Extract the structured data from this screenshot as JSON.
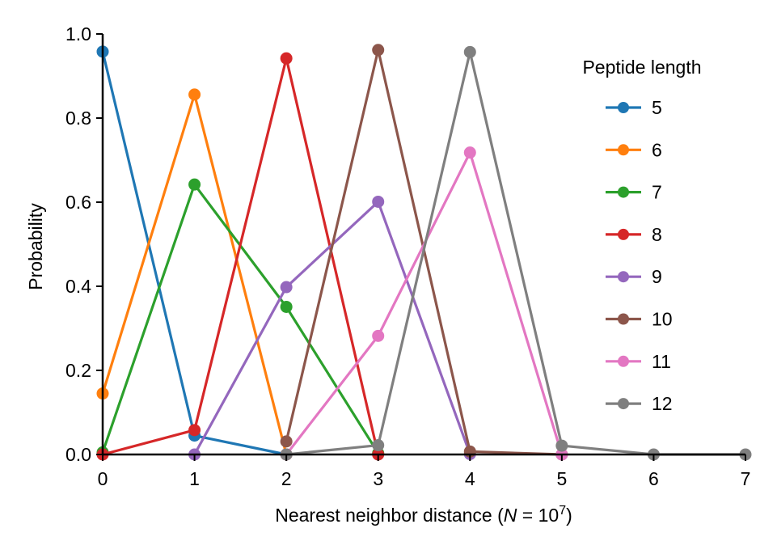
{
  "chart_data": {
    "type": "line",
    "title": "",
    "xlabel": {
      "prefix": "Nearest neighbor distance (",
      "var": "N",
      "eq": " = 10",
      "exp": "7",
      "suffix": ")"
    },
    "ylabel": "Probability",
    "xlim": [
      0,
      7
    ],
    "ylim": [
      0,
      1.0
    ],
    "xticks": [
      "0",
      "1",
      "2",
      "3",
      "4",
      "5",
      "6",
      "7"
    ],
    "yticks": [
      "0.0",
      "0.2",
      "0.4",
      "0.6",
      "0.8",
      "1.0"
    ],
    "grid": false,
    "legend_title": "Peptide length",
    "legend_position": "top-right",
    "series": [
      {
        "name": "5",
        "color": "#1f77b4",
        "x": [
          0,
          1,
          2
        ],
        "y": [
          0.958,
          0.045,
          0.0
        ]
      },
      {
        "name": "6",
        "color": "#ff7f0e",
        "x": [
          0,
          1,
          2
        ],
        "y": [
          0.145,
          0.856,
          0.0
        ]
      },
      {
        "name": "7",
        "color": "#2ca02c",
        "x": [
          0,
          1,
          2,
          3
        ],
        "y": [
          0.005,
          0.642,
          0.351,
          0.003
        ]
      },
      {
        "name": "8",
        "color": "#d62728",
        "x": [
          0,
          1,
          2,
          3
        ],
        "y": [
          0.0,
          0.058,
          0.942,
          0.0
        ]
      },
      {
        "name": "9",
        "color": "#9467bd",
        "x": [
          1,
          2,
          3,
          4
        ],
        "y": [
          0.0,
          0.398,
          0.601,
          0.001
        ]
      },
      {
        "name": "10",
        "color": "#8c564b",
        "x": [
          2,
          3,
          4,
          5
        ],
        "y": [
          0.031,
          0.962,
          0.007,
          0.0
        ]
      },
      {
        "name": "11",
        "color": "#e377c2",
        "x": [
          2,
          3,
          4,
          5
        ],
        "y": [
          0.0,
          0.282,
          0.718,
          0.0
        ]
      },
      {
        "name": "12",
        "color": "#7f7f7f",
        "x": [
          2,
          3,
          4,
          5,
          6,
          7
        ],
        "y": [
          0.0,
          0.022,
          0.957,
          0.021,
          0.0,
          0.0
        ]
      }
    ]
  }
}
